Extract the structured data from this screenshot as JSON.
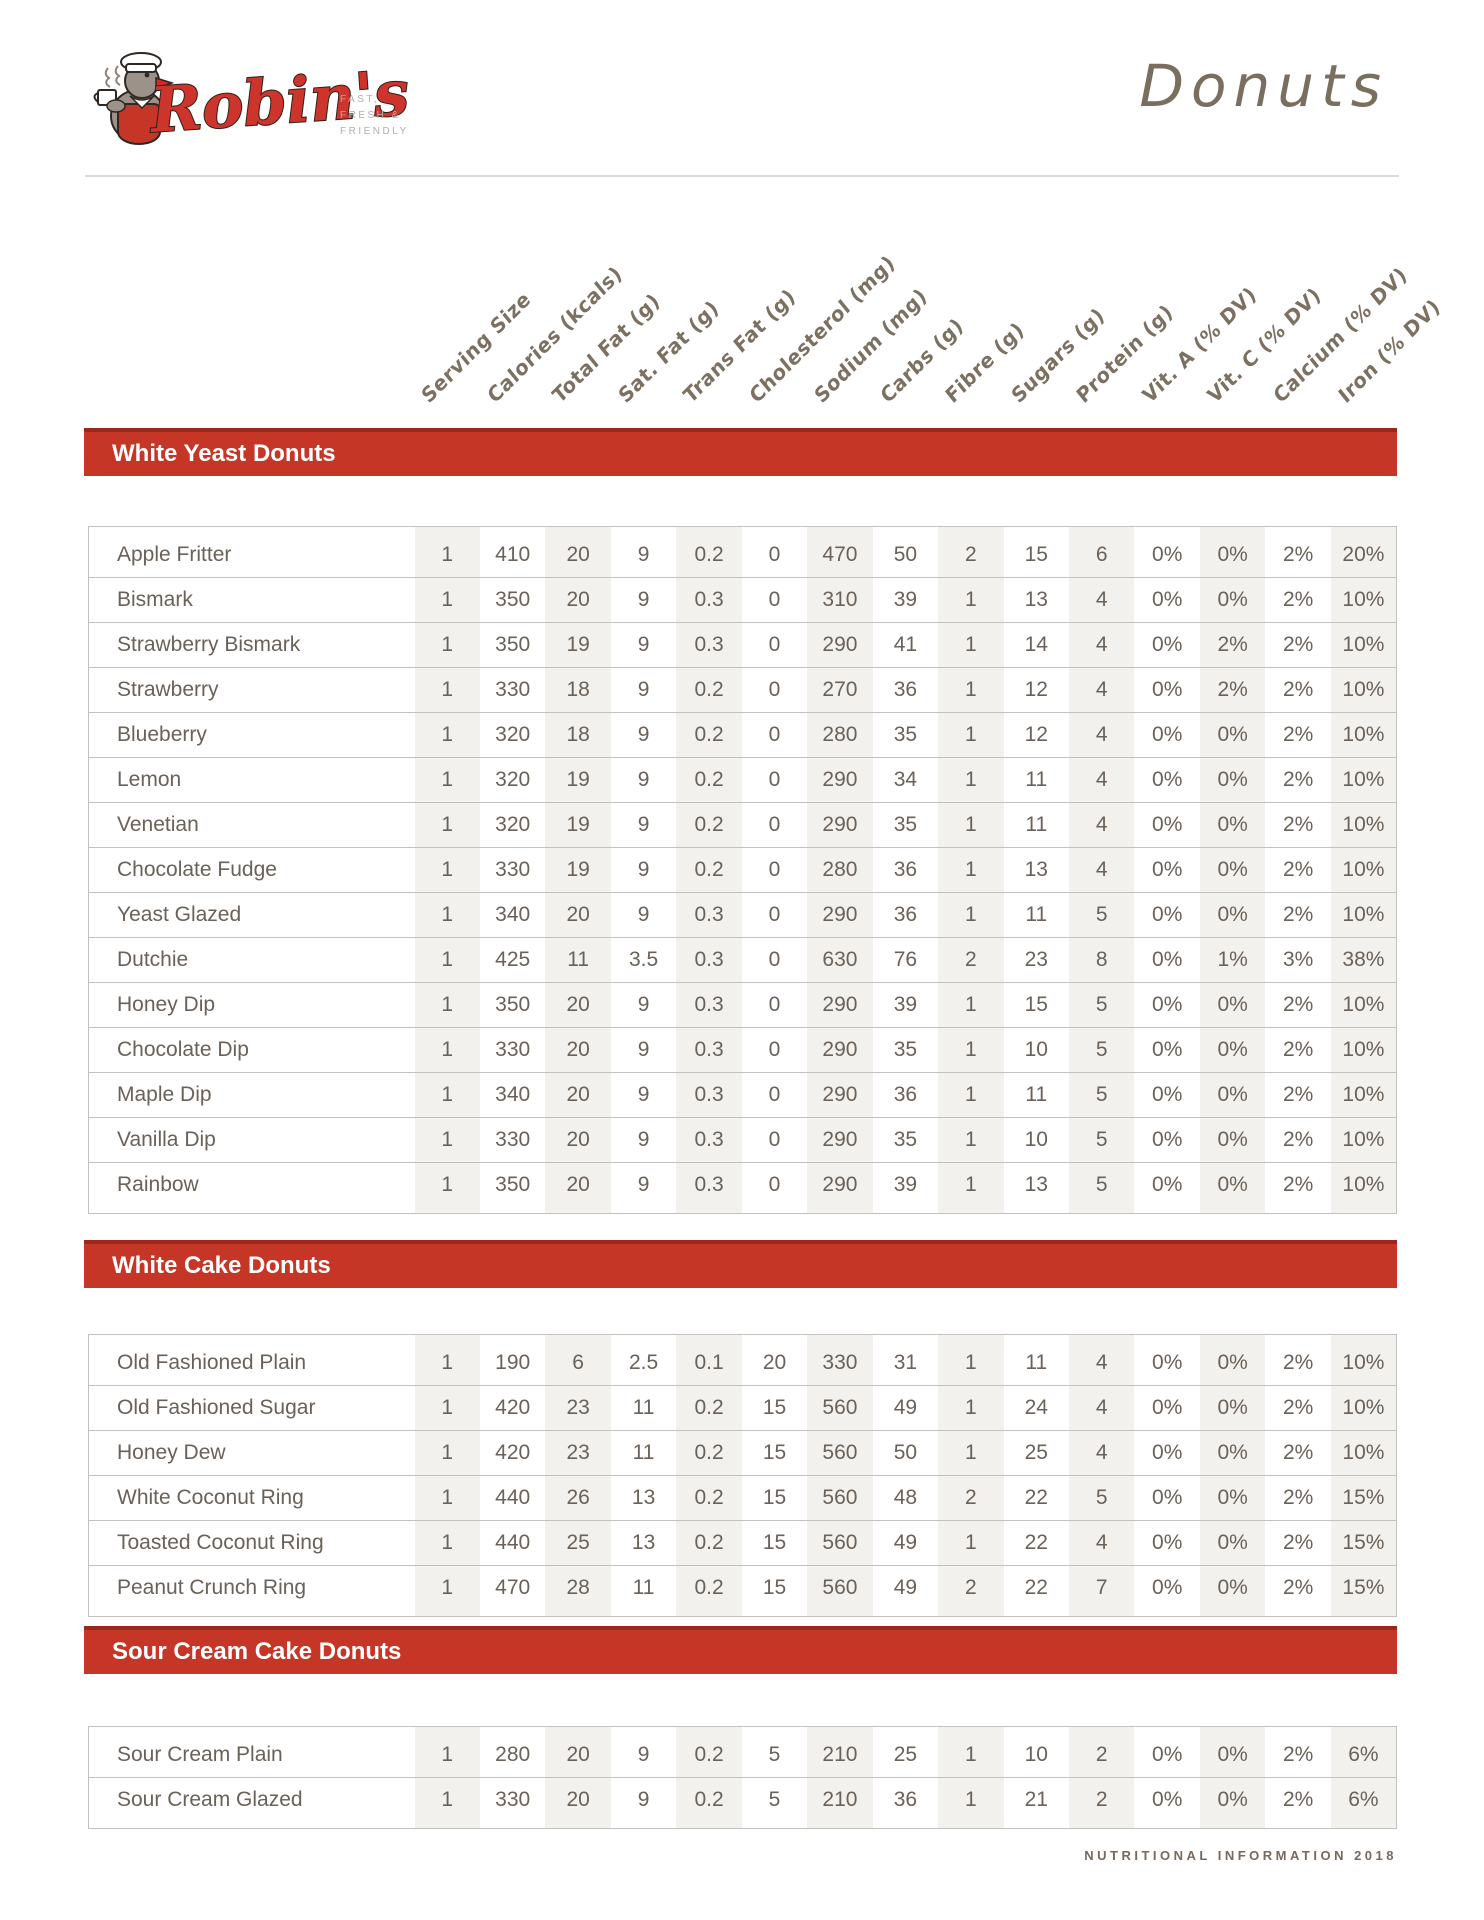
{
  "header": {
    "logo": {
      "brand": "Robin's",
      "tagline_lines": [
        "FAST,",
        "FRESH &",
        "FRIENDLY"
      ]
    },
    "page_title": "Donuts"
  },
  "columns": [
    "Serving Size",
    "Calories (kcals)",
    "Total Fat (g)",
    "Sat. Fat (g)",
    "Trans Fat (g)",
    "Cholesterol (mg)",
    "Sodium (mg)",
    "Carbs (g)",
    "Fibre (g)",
    "Sugars (g)",
    "Protein (g)",
    "Vit. A (% DV)",
    "Vit. C (% DV)",
    "Calcium (% DV)",
    "Iron (% DV)"
  ],
  "sections": [
    {
      "title": "White Yeast Donuts",
      "rows": [
        {
          "name": "Apple Fritter",
          "values": [
            "1",
            "410",
            "20",
            "9",
            "0.2",
            "0",
            "470",
            "50",
            "2",
            "15",
            "6",
            "0%",
            "0%",
            "2%",
            "20%"
          ]
        },
        {
          "name": "Bismark",
          "values": [
            "1",
            "350",
            "20",
            "9",
            "0.3",
            "0",
            "310",
            "39",
            "1",
            "13",
            "4",
            "0%",
            "0%",
            "2%",
            "10%"
          ]
        },
        {
          "name": "Strawberry Bismark",
          "values": [
            "1",
            "350",
            "19",
            "9",
            "0.3",
            "0",
            "290",
            "41",
            "1",
            "14",
            "4",
            "0%",
            "2%",
            "2%",
            "10%"
          ]
        },
        {
          "name": "Strawberry",
          "values": [
            "1",
            "330",
            "18",
            "9",
            "0.2",
            "0",
            "270",
            "36",
            "1",
            "12",
            "4",
            "0%",
            "2%",
            "2%",
            "10%"
          ]
        },
        {
          "name": "Blueberry",
          "values": [
            "1",
            "320",
            "18",
            "9",
            "0.2",
            "0",
            "280",
            "35",
            "1",
            "12",
            "4",
            "0%",
            "0%",
            "2%",
            "10%"
          ]
        },
        {
          "name": "Lemon",
          "values": [
            "1",
            "320",
            "19",
            "9",
            "0.2",
            "0",
            "290",
            "34",
            "1",
            "11",
            "4",
            "0%",
            "0%",
            "2%",
            "10%"
          ]
        },
        {
          "name": "Venetian",
          "values": [
            "1",
            "320",
            "19",
            "9",
            "0.2",
            "0",
            "290",
            "35",
            "1",
            "11",
            "4",
            "0%",
            "0%",
            "2%",
            "10%"
          ]
        },
        {
          "name": "Chocolate Fudge",
          "values": [
            "1",
            "330",
            "19",
            "9",
            "0.2",
            "0",
            "280",
            "36",
            "1",
            "13",
            "4",
            "0%",
            "0%",
            "2%",
            "10%"
          ]
        },
        {
          "name": "Yeast Glazed",
          "values": [
            "1",
            "340",
            "20",
            "9",
            "0.3",
            "0",
            "290",
            "36",
            "1",
            "11",
            "5",
            "0%",
            "0%",
            "2%",
            "10%"
          ]
        },
        {
          "name": "Dutchie",
          "values": [
            "1",
            "425",
            "11",
            "3.5",
            "0.3",
            "0",
            "630",
            "76",
            "2",
            "23",
            "8",
            "0%",
            "1%",
            "3%",
            "38%"
          ]
        },
        {
          "name": "Honey Dip",
          "values": [
            "1",
            "350",
            "20",
            "9",
            "0.3",
            "0",
            "290",
            "39",
            "1",
            "15",
            "5",
            "0%",
            "0%",
            "2%",
            "10%"
          ]
        },
        {
          "name": "Chocolate Dip",
          "values": [
            "1",
            "330",
            "20",
            "9",
            "0.3",
            "0",
            "290",
            "35",
            "1",
            "10",
            "5",
            "0%",
            "0%",
            "2%",
            "10%"
          ]
        },
        {
          "name": "Maple Dip",
          "values": [
            "1",
            "340",
            "20",
            "9",
            "0.3",
            "0",
            "290",
            "36",
            "1",
            "11",
            "5",
            "0%",
            "0%",
            "2%",
            "10%"
          ]
        },
        {
          "name": "Vanilla Dip",
          "values": [
            "1",
            "330",
            "20",
            "9",
            "0.3",
            "0",
            "290",
            "35",
            "1",
            "10",
            "5",
            "0%",
            "0%",
            "2%",
            "10%"
          ]
        },
        {
          "name": "Rainbow",
          "values": [
            "1",
            "350",
            "20",
            "9",
            "0.3",
            "0",
            "290",
            "39",
            "1",
            "13",
            "5",
            "0%",
            "0%",
            "2%",
            "10%"
          ]
        }
      ]
    },
    {
      "title": "White Cake Donuts",
      "rows": [
        {
          "name": "Old Fashioned Plain",
          "values": [
            "1",
            "190",
            "6",
            "2.5",
            "0.1",
            "20",
            "330",
            "31",
            "1",
            "11",
            "4",
            "0%",
            "0%",
            "2%",
            "10%"
          ]
        },
        {
          "name": "Old Fashioned Sugar",
          "values": [
            "1",
            "420",
            "23",
            "11",
            "0.2",
            "15",
            "560",
            "49",
            "1",
            "24",
            "4",
            "0%",
            "0%",
            "2%",
            "10%"
          ]
        },
        {
          "name": "Honey Dew",
          "values": [
            "1",
            "420",
            "23",
            "11",
            "0.2",
            "15",
            "560",
            "50",
            "1",
            "25",
            "4",
            "0%",
            "0%",
            "2%",
            "10%"
          ]
        },
        {
          "name": "White Coconut Ring",
          "values": [
            "1",
            "440",
            "26",
            "13",
            "0.2",
            "15",
            "560",
            "48",
            "2",
            "22",
            "5",
            "0%",
            "0%",
            "2%",
            "15%"
          ]
        },
        {
          "name": "Toasted Coconut Ring",
          "values": [
            "1",
            "440",
            "25",
            "13",
            "0.2",
            "15",
            "560",
            "49",
            "1",
            "22",
            "4",
            "0%",
            "0%",
            "2%",
            "15%"
          ]
        },
        {
          "name": "Peanut Crunch Ring",
          "values": [
            "1",
            "470",
            "28",
            "11",
            "0.2",
            "15",
            "560",
            "49",
            "2",
            "22",
            "7",
            "0%",
            "0%",
            "2%",
            "15%"
          ]
        }
      ]
    },
    {
      "title": "Sour Cream Cake Donuts",
      "rows": [
        {
          "name": "Sour Cream Plain",
          "values": [
            "1",
            "280",
            "20",
            "9",
            "0.2",
            "5",
            "210",
            "25",
            "1",
            "10",
            "2",
            "0%",
            "0%",
            "2%",
            "6%"
          ]
        },
        {
          "name": "Sour Cream Glazed",
          "values": [
            "1",
            "330",
            "20",
            "9",
            "0.2",
            "5",
            "210",
            "36",
            "1",
            "21",
            "2",
            "0%",
            "0%",
            "2%",
            "6%"
          ]
        }
      ]
    }
  ],
  "footer": {
    "text": "NUTRITIONAL INFORMATION 2018"
  },
  "colors": {
    "accent_red": "#c53627",
    "accent_red_dark": "#9c281c",
    "logo_red": "#cc342c",
    "column_stripe": "#f3f1ee",
    "table_text": "#6a6158",
    "handwritten_text": "#7c7061",
    "tagline_gray": "#b4aea8"
  }
}
